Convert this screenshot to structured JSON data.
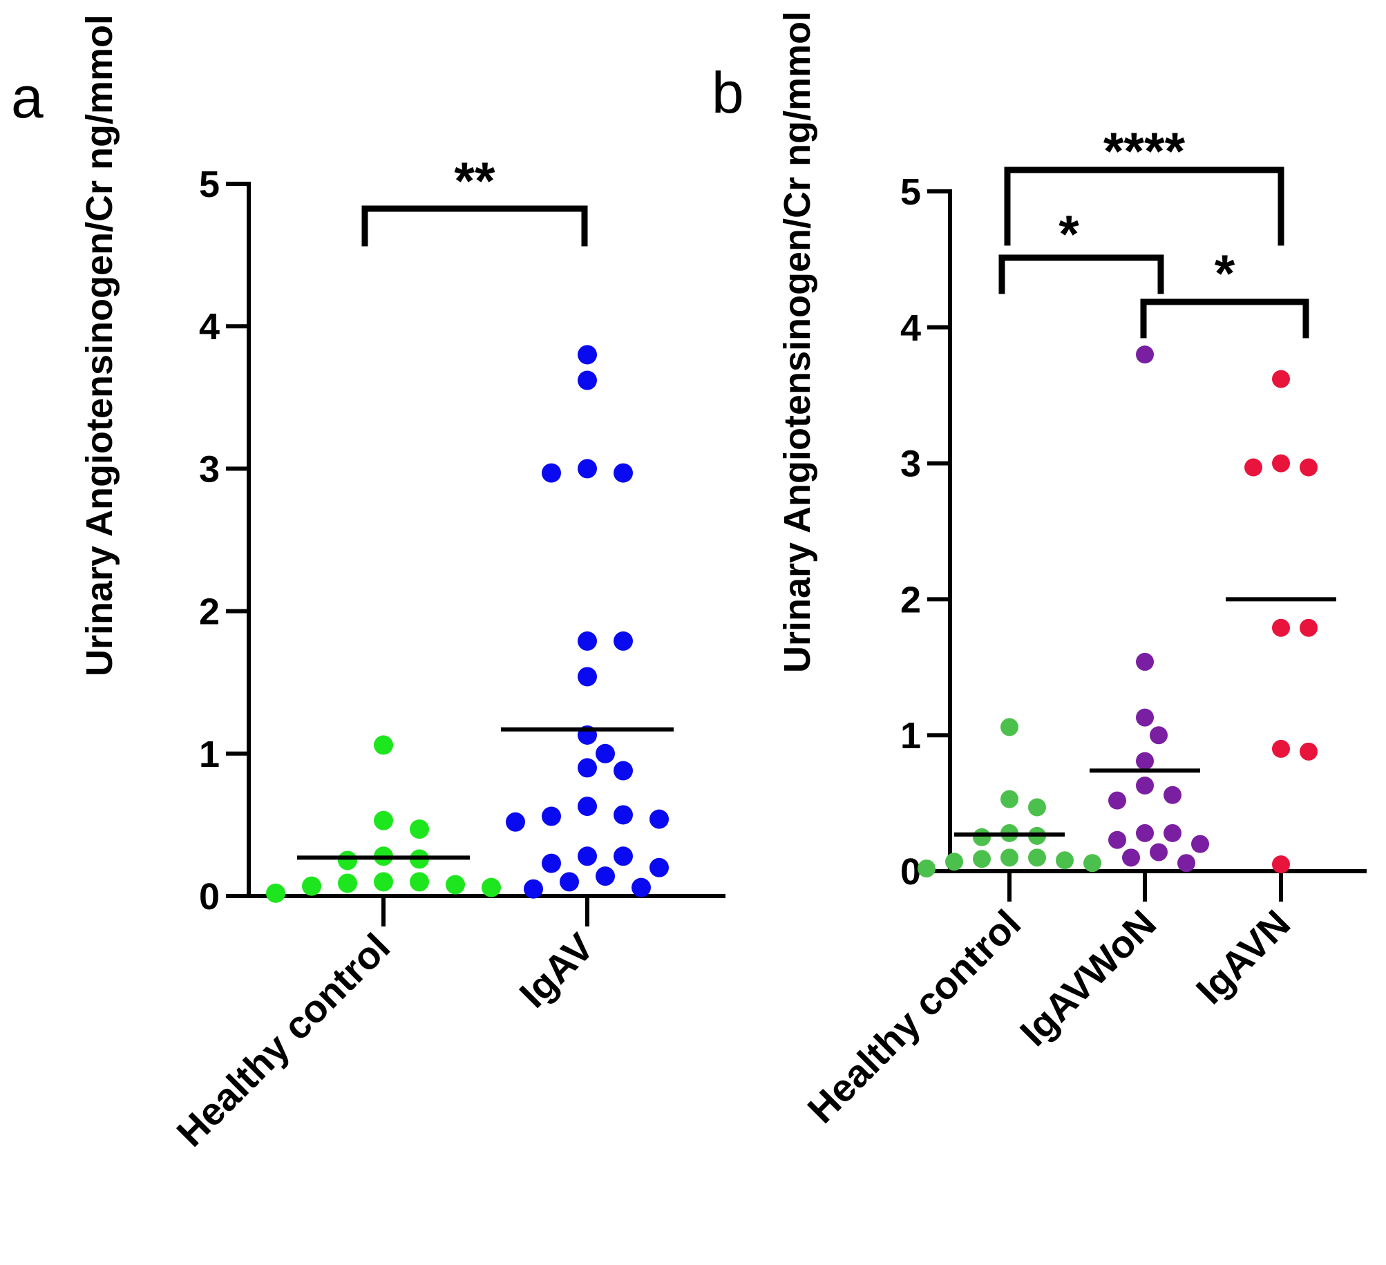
{
  "chart_data": [
    {
      "type": "scatter",
      "panel": "a",
      "ylabel": "Urinary Angiotensinogen/Cr ng/mmol",
      "xlabel": "",
      "ylim": [
        0,
        5
      ],
      "yticks": [
        "0",
        "1",
        "2",
        "3",
        "4",
        "5"
      ],
      "categories": [
        "Healthy control",
        "IgAV"
      ],
      "series": [
        {
          "name": "Healthy control",
          "color": "#1ee61e",
          "mean": 0.27,
          "values": [
            1.06,
            0.47,
            0.53,
            0.25,
            0.28,
            0.26,
            0.1,
            0.08,
            0.06,
            0.09,
            0.1,
            0.07,
            0.02
          ]
        },
        {
          "name": "IgAV",
          "color": "#0a0af0",
          "mean": 1.17,
          "values": [
            3.8,
            3.62,
            2.97,
            3.0,
            2.97,
            1.79,
            1.79,
            1.54,
            1.13,
            1.0,
            0.9,
            0.88,
            0.63,
            0.56,
            0.54,
            0.57,
            0.52,
            0.28,
            0.23,
            0.28,
            0.2,
            0.1,
            0.14,
            0.06,
            0.05
          ]
        }
      ],
      "significance": [
        {
          "from": "Healthy control",
          "to": "IgAV",
          "label": "**"
        }
      ]
    },
    {
      "type": "scatter",
      "panel": "b",
      "ylabel": "Urinary Angiotensinogen/Cr ng/mmol",
      "xlabel": "",
      "ylim": [
        0,
        5
      ],
      "yticks": [
        "0",
        "1",
        "2",
        "3",
        "4",
        "5"
      ],
      "categories": [
        "Healthy control",
        "IgAVWoN",
        "IgAVN"
      ],
      "series": [
        {
          "name": "Healthy control",
          "color": "#4cc04c",
          "mean": 0.27,
          "values": [
            1.06,
            0.47,
            0.53,
            0.25,
            0.28,
            0.26,
            0.1,
            0.08,
            0.06,
            0.09,
            0.1,
            0.07,
            0.02
          ]
        },
        {
          "name": "IgAVWoN",
          "color": "#7b1fa2",
          "mean": 0.74,
          "values": [
            3.8,
            1.54,
            1.13,
            1.0,
            0.81,
            0.63,
            0.56,
            0.52,
            0.28,
            0.23,
            0.28,
            0.2,
            0.14,
            0.1,
            0.06
          ]
        },
        {
          "name": "IgAVN",
          "color": "#e8143c",
          "mean": 2.0,
          "values": [
            3.62,
            2.97,
            3.0,
            2.97,
            1.79,
            1.79,
            0.88,
            0.9,
            0.05
          ]
        }
      ],
      "significance": [
        {
          "from": "Healthy control",
          "to": "IgAVN",
          "label": "****"
        },
        {
          "from": "Healthy control",
          "to": "IgAVWoN",
          "label": "*"
        },
        {
          "from": "IgAVWoN",
          "to": "IgAVN",
          "label": "*"
        }
      ]
    }
  ]
}
